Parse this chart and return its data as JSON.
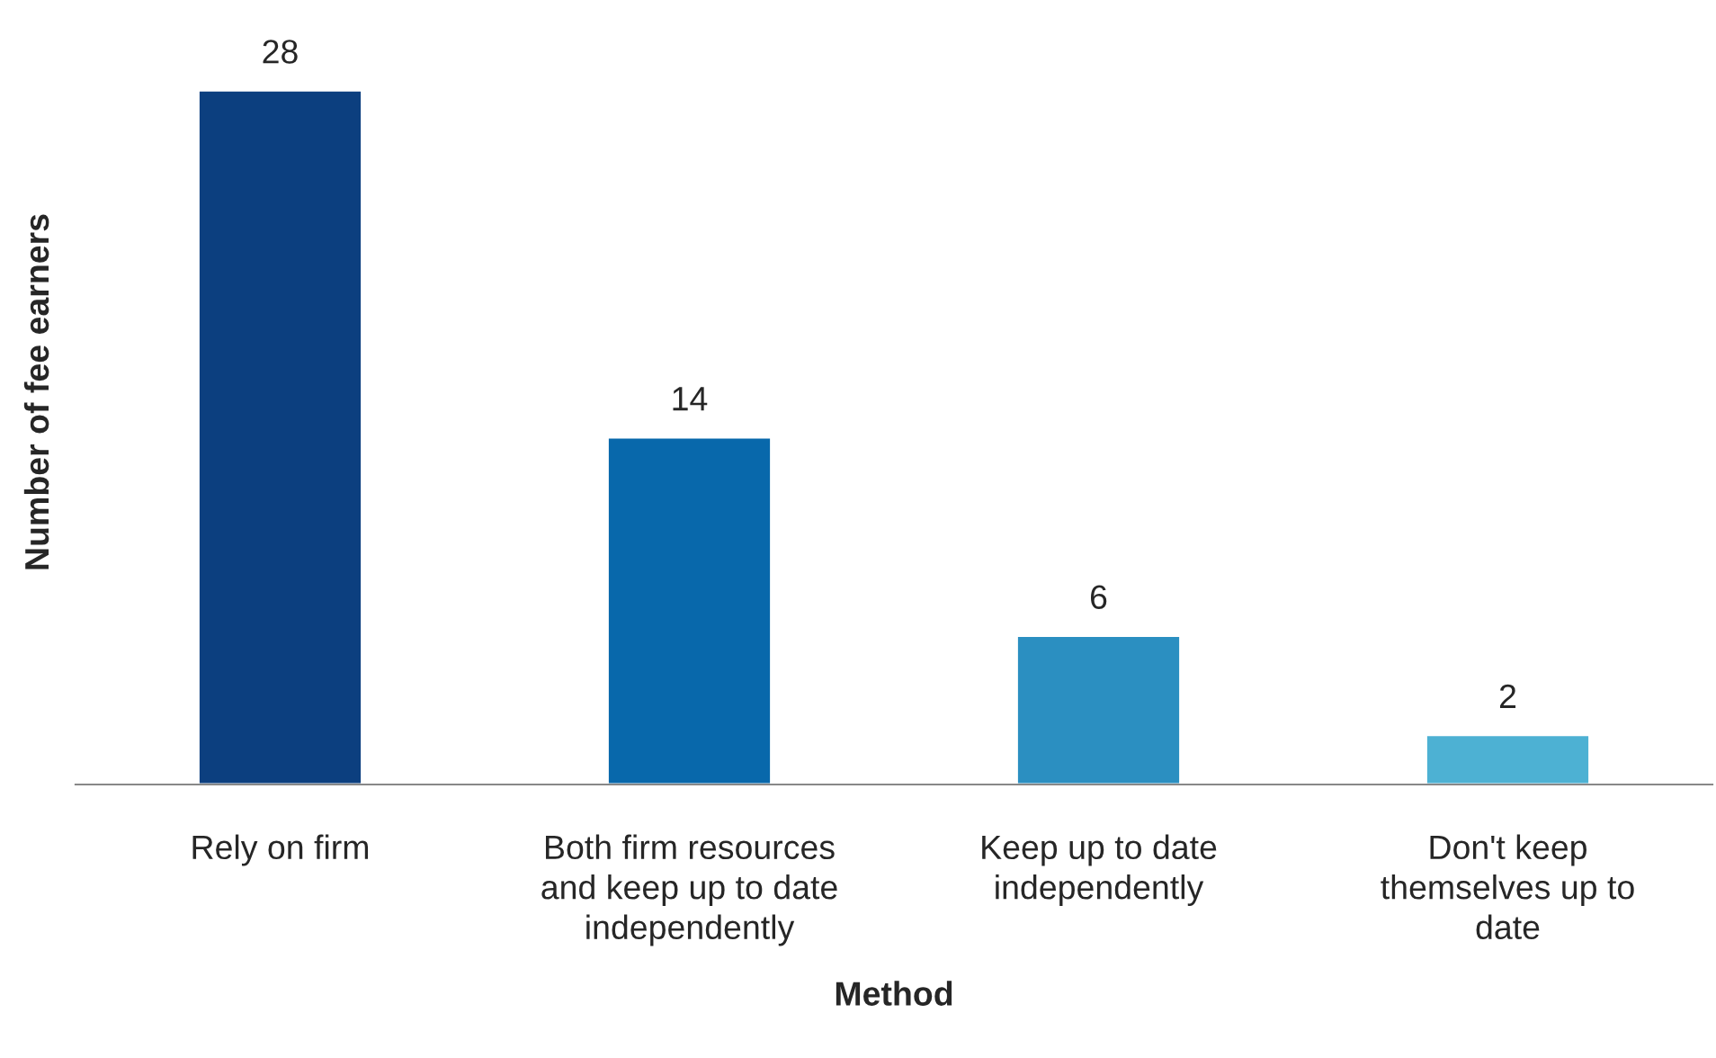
{
  "chart_data": {
    "type": "bar",
    "xlabel": "Method",
    "ylabel": "Number of fee earners",
    "categories": [
      "Rely on firm",
      "Both firm resources\nand keep up to date\nindependently",
      "Keep up to date\nindependently",
      "Don't keep\nthemselves up to\ndate"
    ],
    "values": [
      28,
      14,
      6,
      2
    ],
    "colors": [
      "#0c3f7f",
      "#0868ab",
      "#2b8fc1",
      "#4db1d3"
    ],
    "data_labels": true,
    "grid": false,
    "legend": false
  }
}
